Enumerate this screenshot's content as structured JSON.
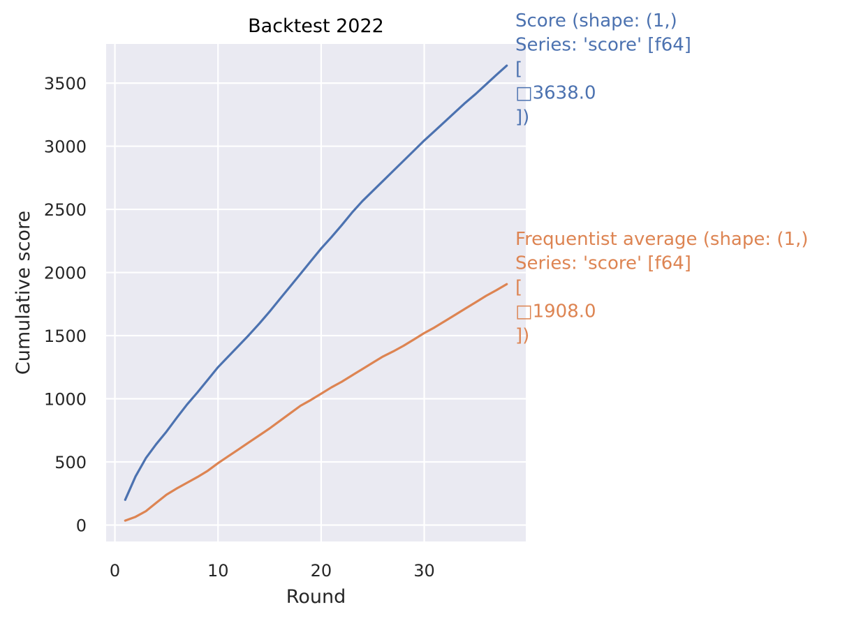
{
  "chart_data": {
    "type": "line",
    "title": "Backtest 2022",
    "xlabel": "Round",
    "ylabel": "Cumulative score",
    "xlim": [
      -0.85,
      39.85
    ],
    "ylim": [
      -130,
      3810
    ],
    "xticks": [
      0,
      10,
      20,
      30
    ],
    "yticks": [
      0,
      500,
      1000,
      1500,
      2000,
      2500,
      3000,
      3500
    ],
    "grid": true,
    "legend": "none",
    "colors": {
      "background": "#eaeaf2",
      "grid": "#ffffff",
      "text": "#262626"
    },
    "series": [
      {
        "key": "score",
        "color": "#4c72b0",
        "x": [
          1,
          2,
          3,
          4,
          5,
          6,
          7,
          8,
          9,
          10,
          11,
          12,
          13,
          14,
          15,
          16,
          17,
          18,
          19,
          20,
          21,
          22,
          23,
          24,
          25,
          26,
          27,
          28,
          29,
          30,
          31,
          32,
          33,
          34,
          35,
          36,
          37,
          38
        ],
        "values": [
          200,
          385,
          530,
          640,
          740,
          850,
          955,
          1050,
          1150,
          1250,
          1335,
          1420,
          1505,
          1595,
          1690,
          1790,
          1890,
          1990,
          2090,
          2190,
          2280,
          2375,
          2475,
          2565,
          2645,
          2725,
          2805,
          2885,
          2965,
          3045,
          3120,
          3195,
          3270,
          3345,
          3415,
          3490,
          3565,
          3638
        ]
      },
      {
        "key": "frequentist",
        "color": "#dd8452",
        "x": [
          1,
          2,
          3,
          4,
          5,
          6,
          7,
          8,
          9,
          10,
          11,
          12,
          13,
          14,
          15,
          16,
          17,
          18,
          19,
          20,
          21,
          22,
          23,
          24,
          25,
          26,
          27,
          28,
          29,
          30,
          31,
          32,
          33,
          34,
          35,
          36,
          37,
          38
        ],
        "values": [
          35,
          65,
          110,
          175,
          240,
          290,
          335,
          380,
          430,
          490,
          545,
          600,
          655,
          710,
          765,
          825,
          885,
          945,
          990,
          1040,
          1090,
          1135,
          1185,
          1235,
          1285,
          1335,
          1375,
          1420,
          1470,
          1520,
          1565,
          1615,
          1665,
          1715,
          1765,
          1815,
          1860,
          1908
        ]
      }
    ],
    "annotations": [
      {
        "series": "score",
        "color": "#4c72b0",
        "lines": [
          "Score (shape: (1,)",
          "Series: 'score' [f64]",
          "[",
          "□3638.0",
          "])"
        ]
      },
      {
        "series": "frequentist",
        "color": "#dd8452",
        "lines": [
          "Frequentist average (shape: (1,)",
          "Series: 'score' [f64]",
          "[",
          "□1908.0",
          "])"
        ]
      }
    ]
  }
}
